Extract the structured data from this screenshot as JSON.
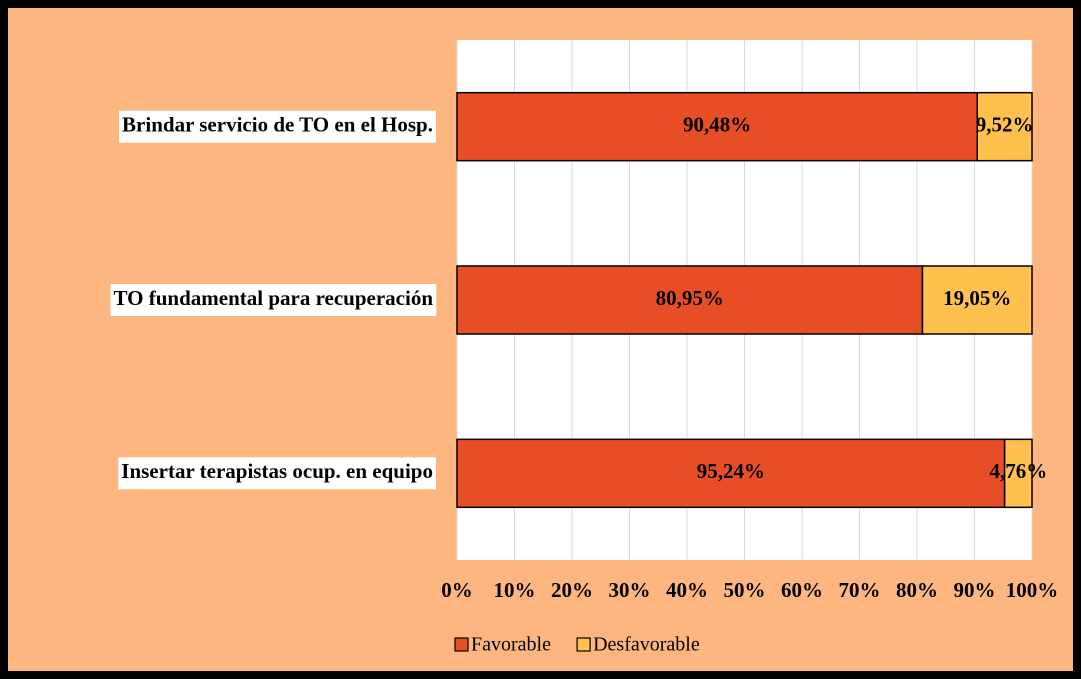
{
  "chart_data": {
    "type": "stacked-barh",
    "categories": [
      "Brindar servicio de TO en el Hosp.",
      "TO fundamental para recuperación",
      "Insertar terapistas ocup. en equipo"
    ],
    "series": [
      {
        "name": "Favorable",
        "color": "#e84e25",
        "values": [
          90.48,
          80.95,
          95.24
        ],
        "value_labels": [
          "90,48%",
          "80,95%",
          "95,24%"
        ]
      },
      {
        "name": "Desfavorable",
        "color": "#ffc04d",
        "values": [
          9.52,
          19.05,
          4.76
        ],
        "value_labels": [
          "9,52%",
          "19,05%",
          "4,76%"
        ]
      }
    ],
    "xlim": [
      0,
      100
    ],
    "xticks": [
      {
        "value": 0,
        "label": "0%"
      },
      {
        "value": 10,
        "label": "10%"
      },
      {
        "value": 20,
        "label": "20%"
      },
      {
        "value": 30,
        "label": "30%"
      },
      {
        "value": 40,
        "label": "40%"
      },
      {
        "value": 50,
        "label": "50%"
      },
      {
        "value": 60,
        "label": "60%"
      },
      {
        "value": 70,
        "label": "70%"
      },
      {
        "value": 80,
        "label": "80%"
      },
      {
        "value": 90,
        "label": "90%"
      },
      {
        "value": 100,
        "label": "100%"
      }
    ],
    "grid": true,
    "legend": "bottom"
  }
}
